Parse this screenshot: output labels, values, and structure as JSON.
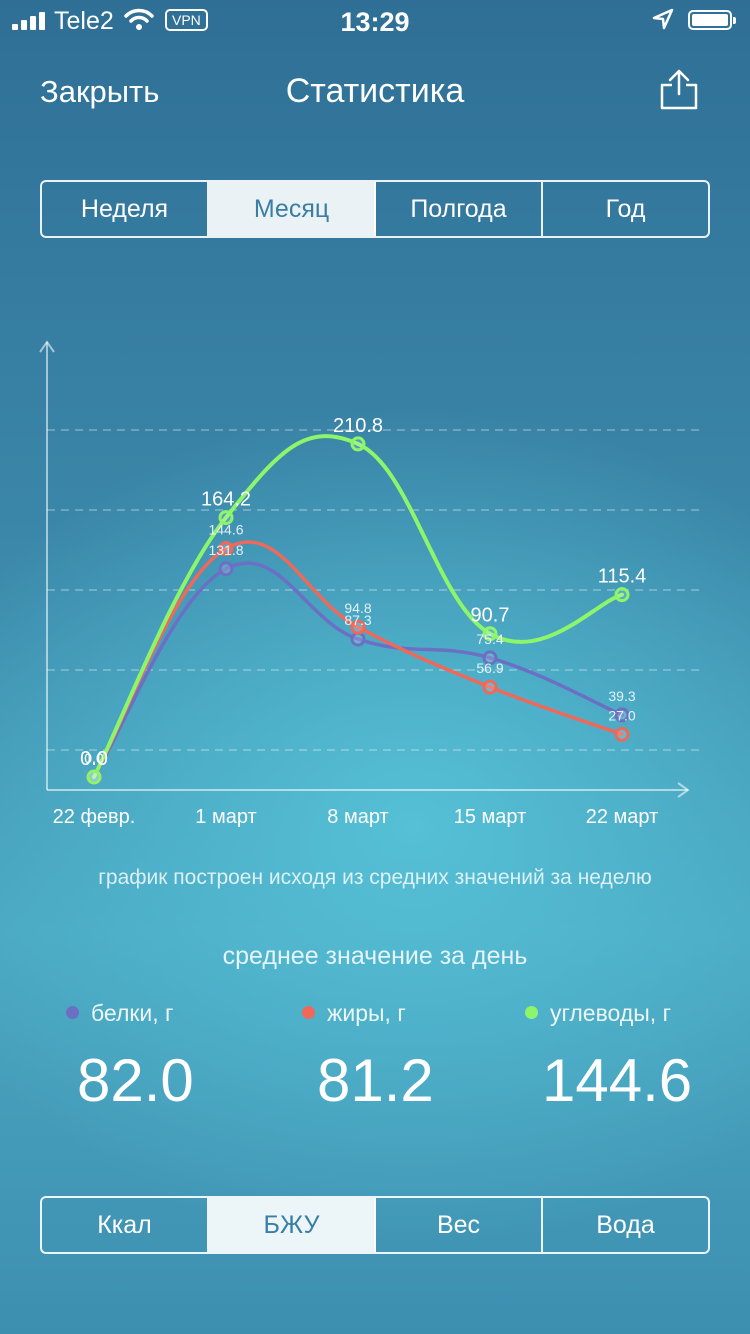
{
  "status_bar": {
    "carrier": "Tele2",
    "vpn": "VPN",
    "time": "13:29"
  },
  "nav": {
    "close_label": "Закрыть",
    "title": "Статистика"
  },
  "period_tabs": [
    {
      "label": "Неделя",
      "active": false
    },
    {
      "label": "Месяц",
      "active": true
    },
    {
      "label": "Полгода",
      "active": false
    },
    {
      "label": "Год",
      "active": false
    }
  ],
  "colors": {
    "protein": "#6b70c4",
    "fat": "#f0685a",
    "carbs": "#8cf56a"
  },
  "chart_data": {
    "type": "line",
    "categories": [
      "22 февр.",
      "1 март",
      "8 март",
      "15 март",
      "22 март"
    ],
    "series": [
      {
        "name": "белки, г",
        "values": [
          0.0,
          131.8,
          87.3,
          75.4,
          39.3
        ]
      },
      {
        "name": "жиры, г",
        "values": [
          0.0,
          144.6,
          94.8,
          56.9,
          27.0
        ]
      },
      {
        "name": "углеводы, г",
        "values": [
          0.0,
          164.2,
          210.8,
          90.7,
          115.4
        ]
      }
    ],
    "grid": true
  },
  "chart_note": "график построен исходя из средних значений за неделю",
  "avg_title": "среднее значение за день",
  "averages": [
    {
      "label": "белки, г",
      "value": "82.0"
    },
    {
      "label": "жиры, г",
      "value": "81.2"
    },
    {
      "label": "углеводы, г",
      "value": "144.6"
    }
  ],
  "metric_tabs": [
    {
      "label": "Ккал",
      "active": false
    },
    {
      "label": "БЖУ",
      "active": true
    },
    {
      "label": "Вес",
      "active": false
    },
    {
      "label": "Вода",
      "active": false
    }
  ]
}
